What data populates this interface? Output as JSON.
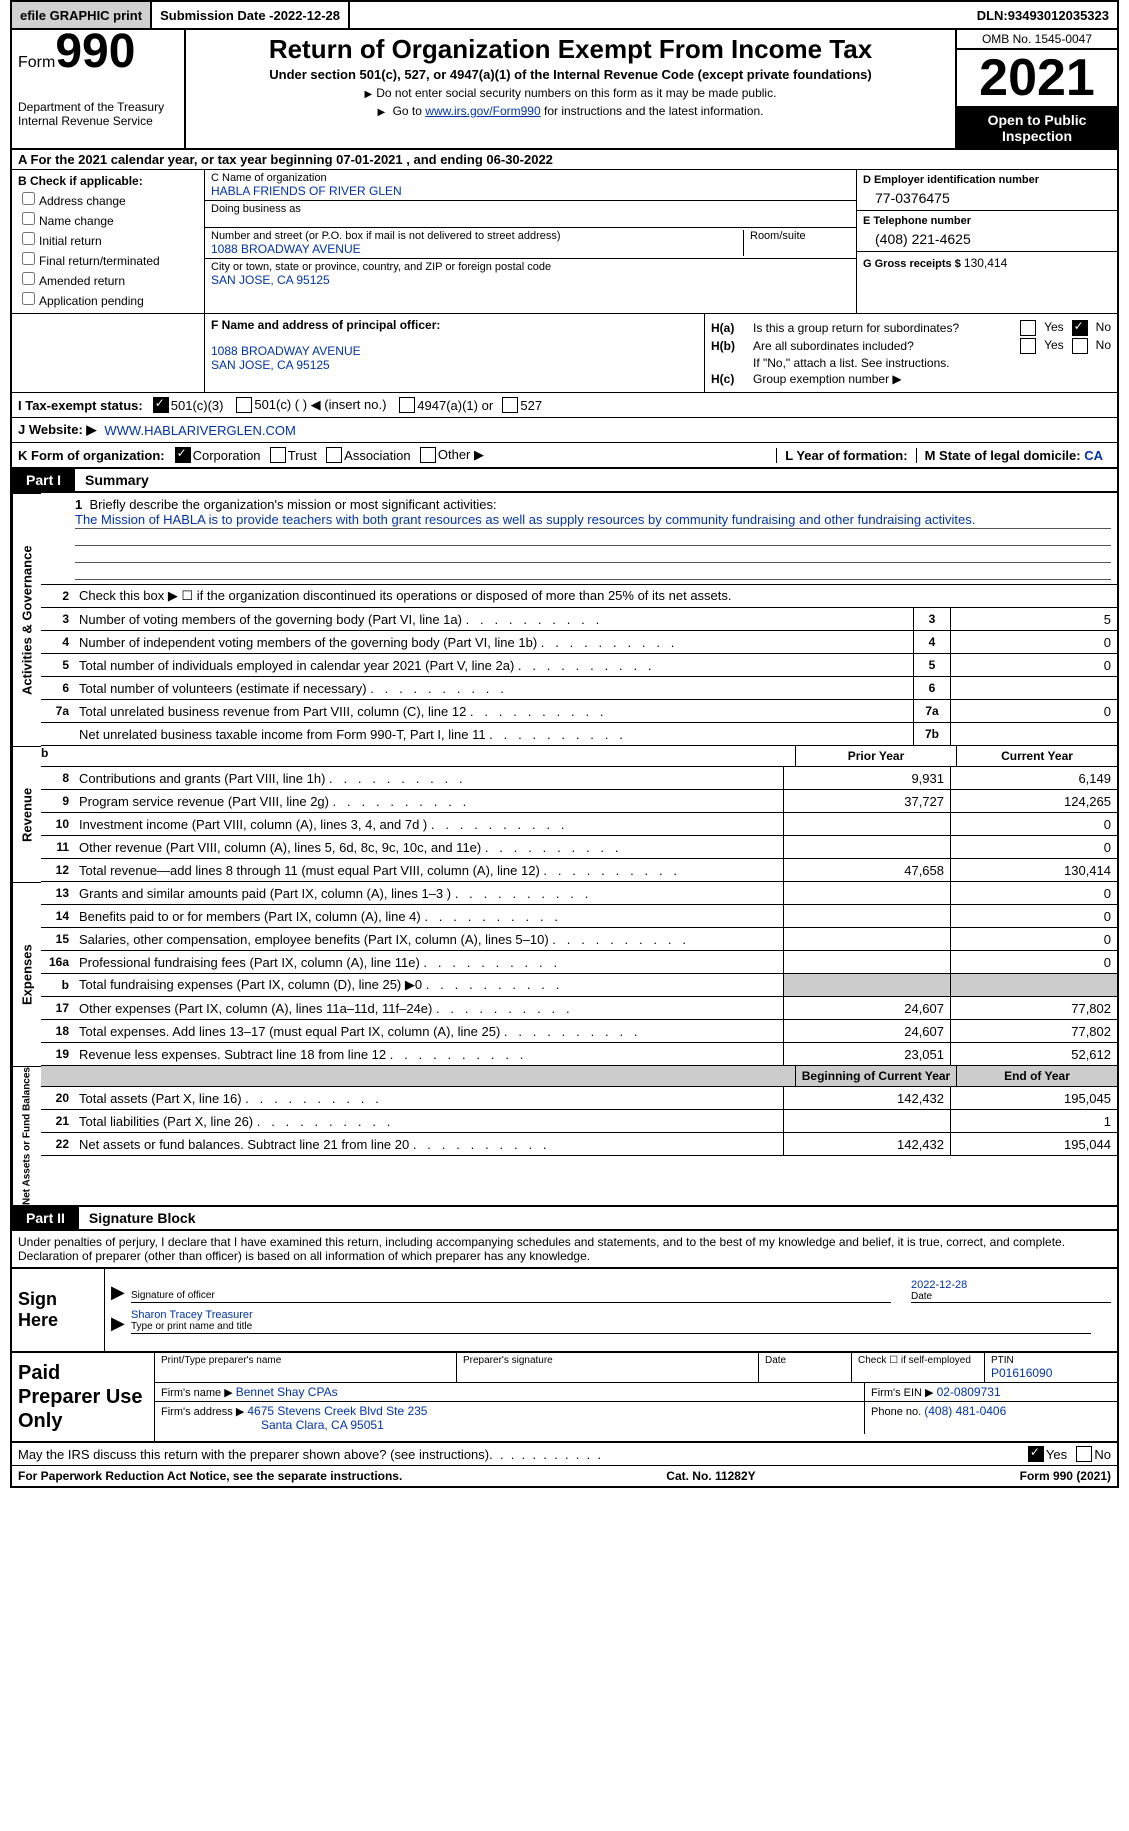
{
  "topbar": {
    "efile_btn": "efile GRAPHIC print",
    "submission_date_label": "Submission Date - ",
    "submission_date": "2022-12-28",
    "dln_label": "DLN: ",
    "dln": "93493012035323"
  },
  "header": {
    "form_label": "Form",
    "form_number": "990",
    "dept": "Department of the Treasury",
    "irs": "Internal Revenue Service",
    "title": "Return of Organization Exempt From Income Tax",
    "subtitle": "Under section 501(c), 527, or 4947(a)(1) of the Internal Revenue Code (except private foundations)",
    "note1": "Do not enter social security numbers on this form as it may be made public.",
    "note2_pre": "Go to ",
    "note2_link": "www.irs.gov/Form990",
    "note2_post": " for instructions and the latest information.",
    "omb": "OMB No. 1545-0047",
    "year": "2021",
    "open": "Open to Public Inspection"
  },
  "row_a": {
    "text": "A For the 2021 calendar year, or tax year beginning 07-01-2021    , and ending 06-30-2022"
  },
  "section_b": {
    "label": "B Check if applicable:",
    "opts": [
      "Address change",
      "Name change",
      "Initial return",
      "Final return/terminated",
      "Amended return",
      "Application pending"
    ]
  },
  "section_c": {
    "name_label": "C Name of organization",
    "name": "HABLA FRIENDS OF RIVER GLEN",
    "dba_label": "Doing business as",
    "addr_label": "Number and street (or P.O. box if mail is not delivered to street address)",
    "room_label": "Room/suite",
    "addr": "1088 BROADWAY AVENUE",
    "city_label": "City or town, state or province, country, and ZIP or foreign postal code",
    "city": "SAN JOSE, CA  95125"
  },
  "section_d": {
    "ein_label": "D Employer identification number",
    "ein": "77-0376475",
    "tel_label": "E Telephone number",
    "tel": "(408) 221-4625",
    "gross_label": "G Gross receipts $ ",
    "gross": "130,414"
  },
  "section_f": {
    "label": "F  Name and address of principal officer:",
    "addr1": "1088 BROADWAY AVENUE",
    "addr2": "SAN JOSE, CA  95125"
  },
  "section_h": {
    "ha_label": "H(a)",
    "ha_text": "Is this a group return for subordinates?",
    "hb_label": "H(b)",
    "hb_text": "Are all subordinates included?",
    "hb_note": "If \"No,\" attach a list. See instructions.",
    "hc_label": "H(c)",
    "hc_text": "Group exemption number ▶",
    "yes": "Yes",
    "no": "No"
  },
  "row_i": {
    "label": "I   Tax-exempt status:",
    "o1": "501(c)(3)",
    "o2": "501(c) (  ) ◀ (insert no.)",
    "o3": "4947(a)(1) or",
    "o4": "527"
  },
  "row_j": {
    "label": "J   Website: ▶",
    "val": "WWW.HABLARIVERGLEN.COM"
  },
  "row_k": {
    "label": "K Form of organization:",
    "o1": "Corporation",
    "o2": "Trust",
    "o3": "Association",
    "o4": "Other ▶",
    "l_label": "L Year of formation:",
    "m_label": "M State of legal domicile: ",
    "m_val": "CA"
  },
  "part1": {
    "tab": "Part I",
    "title": "Summary",
    "mission_prompt": "Briefly describe the organization's mission or most significant activities:",
    "mission_n": "1",
    "mission": "The Mission of HABLA is to provide teachers with both grant resources as well as supply resources by community fundraising and other fundraising activites.",
    "line2": "Check this box ▶ ☐  if the organization discontinued its operations or disposed of more than 25% of its net assets.",
    "rows_ag": [
      {
        "n": "3",
        "d": "Number of voting members of the governing body (Part VI, line 1a)",
        "c": "3",
        "v": "5"
      },
      {
        "n": "4",
        "d": "Number of independent voting members of the governing body (Part VI, line 1b)",
        "c": "4",
        "v": "0"
      },
      {
        "n": "5",
        "d": "Total number of individuals employed in calendar year 2021 (Part V, line 2a)",
        "c": "5",
        "v": "0"
      },
      {
        "n": "6",
        "d": "Total number of volunteers (estimate if necessary)",
        "c": "6",
        "v": ""
      },
      {
        "n": "7a",
        "d": "Total unrelated business revenue from Part VIII, column (C), line 12",
        "c": "7a",
        "v": "0"
      },
      {
        "n": "",
        "d": "Net unrelated business taxable income from Form 990-T, Part I, line 11",
        "c": "7b",
        "v": ""
      }
    ],
    "col_prior": "Prior Year",
    "col_current": "Current Year",
    "rows_rev": [
      {
        "n": "8",
        "d": "Contributions and grants (Part VIII, line 1h)",
        "p": "9,931",
        "c": "6,149"
      },
      {
        "n": "9",
        "d": "Program service revenue (Part VIII, line 2g)",
        "p": "37,727",
        "c": "124,265"
      },
      {
        "n": "10",
        "d": "Investment income (Part VIII, column (A), lines 3, 4, and 7d )",
        "p": "",
        "c": "0"
      },
      {
        "n": "11",
        "d": "Other revenue (Part VIII, column (A), lines 5, 6d, 8c, 9c, 10c, and 11e)",
        "p": "",
        "c": "0"
      },
      {
        "n": "12",
        "d": "Total revenue—add lines 8 through 11 (must equal Part VIII, column (A), line 12)",
        "p": "47,658",
        "c": "130,414"
      }
    ],
    "rows_exp": [
      {
        "n": "13",
        "d": "Grants and similar amounts paid (Part IX, column (A), lines 1–3 )",
        "p": "",
        "c": "0"
      },
      {
        "n": "14",
        "d": "Benefits paid to or for members (Part IX, column (A), line 4)",
        "p": "",
        "c": "0"
      },
      {
        "n": "15",
        "d": "Salaries, other compensation, employee benefits (Part IX, column (A), lines 5–10)",
        "p": "",
        "c": "0"
      },
      {
        "n": "16a",
        "d": "Professional fundraising fees (Part IX, column (A), line 11e)",
        "p": "",
        "c": "0"
      },
      {
        "n": "b",
        "d": "Total fundraising expenses (Part IX, column (D), line 25) ▶0",
        "shade": true
      },
      {
        "n": "17",
        "d": "Other expenses (Part IX, column (A), lines 11a–11d, 11f–24e)",
        "p": "24,607",
        "c": "77,802"
      },
      {
        "n": "18",
        "d": "Total expenses. Add lines 13–17 (must equal Part IX, column (A), line 25)",
        "p": "24,607",
        "c": "77,802"
      },
      {
        "n": "19",
        "d": "Revenue less expenses. Subtract line 18 from line 12",
        "p": "23,051",
        "c": "52,612"
      }
    ],
    "col_begin": "Beginning of Current Year",
    "col_end": "End of Year",
    "rows_na": [
      {
        "n": "20",
        "d": "Total assets (Part X, line 16)",
        "p": "142,432",
        "c": "195,045"
      },
      {
        "n": "21",
        "d": "Total liabilities (Part X, line 26)",
        "p": "",
        "c": "1"
      },
      {
        "n": "22",
        "d": "Net assets or fund balances. Subtract line 21 from line 20",
        "p": "142,432",
        "c": "195,044"
      }
    ],
    "vlabels": {
      "ag": "Activities & Governance",
      "rev": "Revenue",
      "exp": "Expenses",
      "na": "Net Assets or Fund Balances"
    }
  },
  "part2": {
    "tab": "Part II",
    "title": "Signature Block",
    "penalties": "Under penalties of perjury, I declare that I have examined this return, including accompanying schedules and statements, and to the best of my knowledge and belief, it is true, correct, and complete. Declaration of preparer (other than officer) is based on all information of which preparer has any knowledge.",
    "sign_here": "Sign Here",
    "sig_officer": "Signature of officer",
    "sig_date": "2022-12-28",
    "date_lbl": "Date",
    "name_title": "Sharon Tracey  Treasurer",
    "type_name": "Type or print name and title",
    "paid_prep": "Paid Preparer Use Only",
    "print_name_lbl": "Print/Type preparer's name",
    "prep_sig_lbl": "Preparer's signature",
    "check_self": "Check ☐ if self-employed",
    "ptin_lbl": "PTIN",
    "ptin": "P01616090",
    "firm_name_lbl": "Firm's name      ▶",
    "firm_name": "Bennet Shay CPAs",
    "firm_ein_lbl": "Firm's EIN ▶",
    "firm_ein": "02-0809731",
    "firm_addr_lbl": "Firm's address ▶",
    "firm_addr1": "4675 Stevens Creek Blvd Ste 235",
    "firm_addr2": "Santa Clara, CA  95051",
    "phone_lbl": "Phone no. ",
    "phone": "(408) 481-0406"
  },
  "discuss": {
    "text": "May the IRS discuss this return with the preparer shown above? (see instructions)",
    "yes": "Yes",
    "no": "No"
  },
  "footer": {
    "left": "For Paperwork Reduction Act Notice, see the separate instructions.",
    "mid": "Cat. No. 11282Y",
    "right": "Form 990 (2021)"
  }
}
